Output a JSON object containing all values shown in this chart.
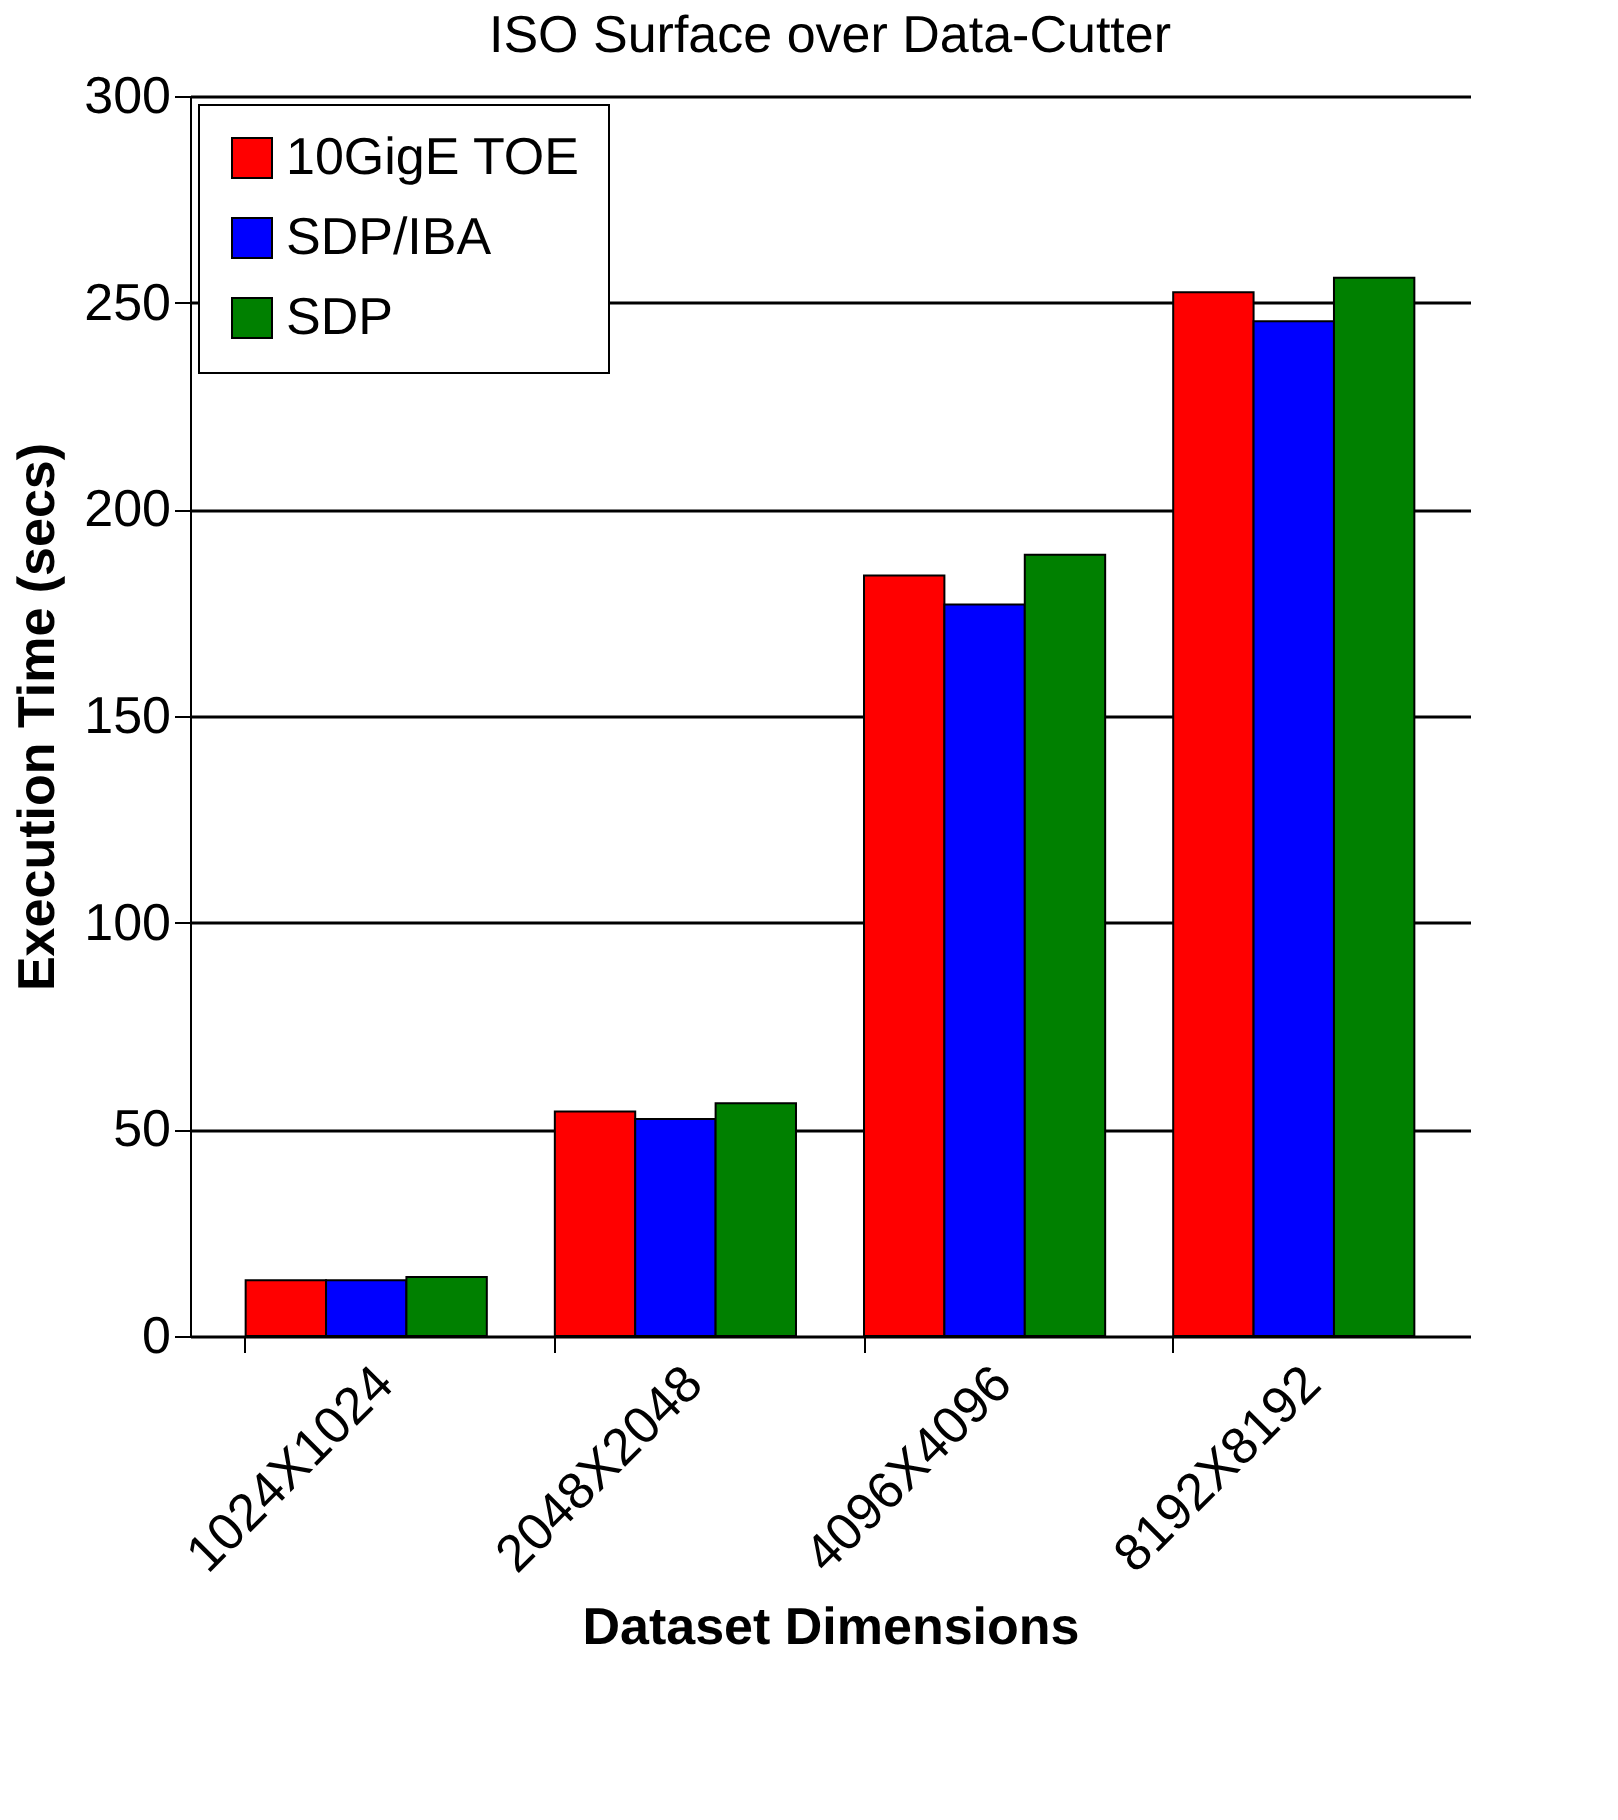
{
  "chart_data": {
    "type": "bar",
    "title": "ISO Surface over Data-Cutter",
    "xlabel": "Dataset Dimensions",
    "ylabel": "Execution Time (secs)",
    "categories": [
      "1024X1024",
      "2048X2048",
      "4096X4096",
      "8192X8192"
    ],
    "series": [
      {
        "name": "10GigE TOE",
        "color": "#ff0000",
        "values": [
          13.5,
          54.3,
          184,
          252.5
        ]
      },
      {
        "name": "SDP/IBA",
        "color": "#0000ff",
        "values": [
          13.5,
          52.5,
          177,
          245.5
        ]
      },
      {
        "name": "SDP",
        "color": "#008000",
        "values": [
          14.3,
          56.3,
          189,
          256
        ]
      }
    ],
    "ylim": [
      0,
      300
    ],
    "yticks": [
      0,
      50,
      100,
      150,
      200,
      250,
      300
    ],
    "grid": "y",
    "legend": "top left"
  }
}
